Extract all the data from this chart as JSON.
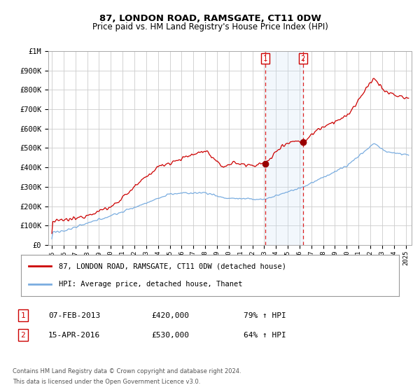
{
  "title": "87, LONDON ROAD, RAMSGATE, CT11 0DW",
  "subtitle": "Price paid vs. HM Land Registry's House Price Index (HPI)",
  "red_legend": "87, LONDON ROAD, RAMSGATE, CT11 0DW (detached house)",
  "blue_legend": "HPI: Average price, detached house, Thanet",
  "t1_date": "07-FEB-2013",
  "t1_price": "£420,000",
  "t1_hpi": "79% ↑ HPI",
  "t1_year": 2013.09,
  "t1_val": 420000,
  "t2_date": "15-APR-2016",
  "t2_price": "£530,000",
  "t2_hpi": "64% ↑ HPI",
  "t2_year": 2016.29,
  "t2_val": 530000,
  "footnote1": "Contains HM Land Registry data © Crown copyright and database right 2024.",
  "footnote2": "This data is licensed under the Open Government Licence v3.0.",
  "ylim": [
    0,
    1000000
  ],
  "yticks": [
    0,
    100000,
    200000,
    300000,
    400000,
    500000,
    600000,
    700000,
    800000,
    900000,
    1000000
  ],
  "xlim_start": 1994.7,
  "xlim_end": 2025.5,
  "bg": "#ffffff",
  "grid_color": "#cccccc",
  "red_color": "#cc0000",
  "blue_color": "#7aade0",
  "marker_color": "#990000",
  "vline_color": "#dd2222",
  "shade_color": "#cce0f5",
  "box_color": "#cc0000"
}
